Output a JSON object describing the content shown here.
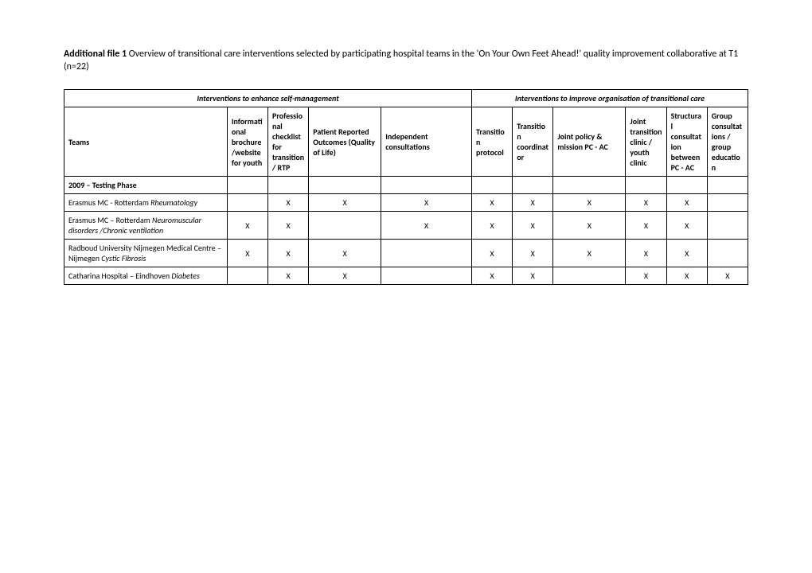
{
  "title_bold": "Additional file 1",
  "title_rest": "  Overview of transitional care interventions selected by participating hospital teams in the 'On Your Own Feet Ahead!' quality improvement collaborative at T1 (n=22)",
  "super_headers": {
    "left": "Interventions to enhance self-management",
    "right": "Interventions to improve organisation of transitional care"
  },
  "columns": {
    "teams": "Teams",
    "brochure": "Informational brochure/website for youth",
    "checklist": "Professional checklist for transition / RTP",
    "prom": "Patient Reported Outcomes (Quality of Life)",
    "independent": "Independent consultations",
    "protocol": "Transition protocol",
    "coordinator": "Transition coordinator",
    "policy": "Joint policy & mission PC - AC",
    "jointclinic": "Joint transition clinic / youth clinic",
    "structcons": "Structural consultation between PC - AC",
    "group": "Group consultations / group education"
  },
  "section": "2009 – Testing Phase",
  "rows": [
    {
      "team_name": "Erasmus MC - Rotterdam",
      "team_dept": "Rheumatology",
      "brochure": "",
      "checklist": "X",
      "prom": "X",
      "independent": "X",
      "protocol": "X",
      "coordinator": "X",
      "policy": "X",
      "jointclinic": "X",
      "structcons": "X",
      "group": ""
    },
    {
      "team_name": "Erasmus MC – Rotterdam",
      "team_dept": "Neuromuscular disorders /Chronic ventilation",
      "brochure": "X",
      "checklist": "X",
      "prom": "",
      "independent": "X",
      "protocol": "X",
      "coordinator": "X",
      "policy": "X",
      "jointclinic": "X",
      "structcons": "X",
      "group": ""
    },
    {
      "team_name": "Radboud University Nijmegen Medical Centre – Nijmegen",
      "team_dept": "Cystic Fibrosis",
      "brochure": "X",
      "checklist": "X",
      "prom": "X",
      "independent": "",
      "protocol": "X",
      "coordinator": "X",
      "policy": "X",
      "jointclinic": "X",
      "structcons": "X",
      "group": ""
    },
    {
      "team_name": "Catharina Hospital – Eindhoven",
      "team_dept": "Diabetes",
      "brochure": "",
      "checklist": "X",
      "prom": "X",
      "independent": "",
      "protocol": "X",
      "coordinator": "X",
      "policy": "",
      "jointclinic": "X",
      "structcons": "X",
      "group": "X"
    }
  ]
}
